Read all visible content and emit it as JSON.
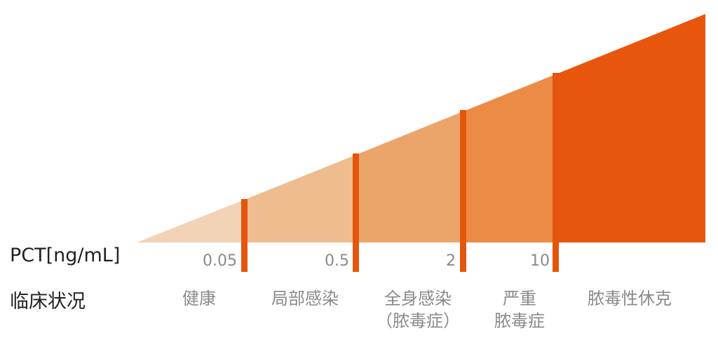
{
  "labels": {
    "pct": "PCT[ng/mL]",
    "clinical": "临床状况"
  },
  "thresholds": [
    "0.05",
    "0.5",
    "2",
    "10"
  ],
  "states": [
    "健康",
    "局部感染",
    "全身感染\n（脓毒症）",
    "严重\n脓毒症",
    "脓毒性休克"
  ],
  "colors": {
    "segments": [
      "#f2d3b6",
      "#eebc8e",
      "#eba56a",
      "#ec8b45",
      "#e8560e"
    ],
    "divider": "#e4560e",
    "text_dark": "#222222",
    "text_gray": "#8a8a8a"
  }
}
